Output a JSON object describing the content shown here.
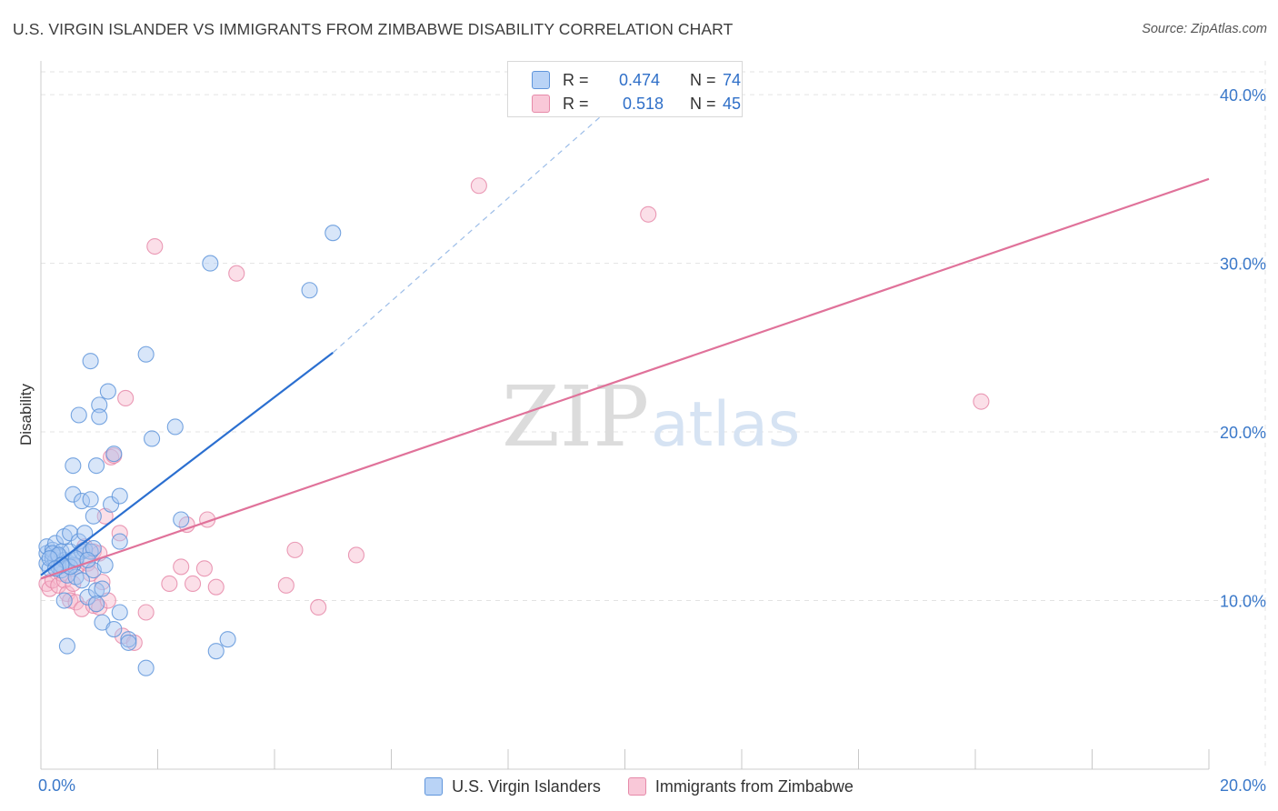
{
  "header": {
    "title": "U.S. VIRGIN ISLANDER VS IMMIGRANTS FROM ZIMBABWE DISABILITY CORRELATION CHART",
    "source": "Source: ZipAtlas.com"
  },
  "stats": {
    "blue": {
      "r_label": "R =",
      "r_value": "0.474",
      "n_label": "N =",
      "n_value": "74"
    },
    "pink": {
      "r_label": "R =",
      "r_value": "0.518",
      "n_label": "N =",
      "n_value": "45"
    }
  },
  "watermark": {
    "zip": "ZIP",
    "atlas": "atlas"
  },
  "colors": {
    "blue": "#5f95db",
    "blue_line": "#2b6fd0",
    "pink": "#e68aa9",
    "pink_line": "#e0729a",
    "tick": "#3a78c9"
  },
  "chart_data": {
    "type": "scatter",
    "title": "U.S. VIRGIN ISLANDER VS IMMIGRANTS FROM ZIMBABWE DISABILITY CORRELATION CHART",
    "xlabel": "",
    "ylabel": "Disability",
    "xlim": [
      0,
      20
    ],
    "ylim": [
      0,
      42
    ],
    "x_ticks": [
      0,
      2,
      4,
      6,
      8,
      10,
      12,
      14,
      16,
      18,
      20
    ],
    "x_tick_labels": {
      "0": "0.0%",
      "20": "20.0%"
    },
    "y_ticks": [
      10,
      20,
      30,
      40
    ],
    "y_tick_labels": [
      "10.0%",
      "20.0%",
      "30.0%",
      "40.0%"
    ],
    "grid": true,
    "legend": [
      "U.S. Virgin Islanders",
      "Immigrants from Zimbabwe"
    ],
    "series": [
      {
        "name": "U.S. Virgin Islanders",
        "color": "#5f95db",
        "points": [
          [
            0.1,
            12.2
          ],
          [
            0.1,
            12.8
          ],
          [
            0.1,
            13.2
          ],
          [
            0.15,
            11.9
          ],
          [
            0.2,
            12.5
          ],
          [
            0.2,
            13.0
          ],
          [
            0.25,
            12.4
          ],
          [
            0.25,
            13.4
          ],
          [
            0.3,
            12.0
          ],
          [
            0.3,
            12.6
          ],
          [
            0.35,
            12.9
          ],
          [
            0.35,
            11.8
          ],
          [
            0.4,
            12.4
          ],
          [
            0.4,
            13.8
          ],
          [
            0.45,
            11.5
          ],
          [
            0.45,
            12.3
          ],
          [
            0.5,
            14.0
          ],
          [
            0.5,
            12.9
          ],
          [
            0.55,
            18.0
          ],
          [
            0.55,
            16.3
          ],
          [
            0.55,
            12.1
          ],
          [
            0.6,
            12.4
          ],
          [
            0.6,
            11.4
          ],
          [
            0.65,
            13.5
          ],
          [
            0.65,
            21.0
          ],
          [
            0.7,
            11.2
          ],
          [
            0.7,
            15.9
          ],
          [
            0.7,
            12.9
          ],
          [
            0.75,
            13.0
          ],
          [
            0.75,
            14.0
          ],
          [
            0.8,
            10.2
          ],
          [
            0.85,
            24.2
          ],
          [
            0.85,
            12.9
          ],
          [
            0.85,
            16.0
          ],
          [
            0.9,
            11.8
          ],
          [
            0.9,
            15.0
          ],
          [
            0.9,
            13.1
          ],
          [
            0.95,
            10.6
          ],
          [
            0.95,
            18.0
          ],
          [
            0.95,
            9.8
          ],
          [
            1.0,
            21.6
          ],
          [
            1.0,
            20.9
          ],
          [
            1.05,
            8.7
          ],
          [
            1.05,
            10.7
          ],
          [
            1.1,
            12.1
          ],
          [
            1.15,
            22.4
          ],
          [
            1.2,
            15.7
          ],
          [
            1.25,
            18.7
          ],
          [
            1.25,
            8.3
          ],
          [
            1.35,
            13.5
          ],
          [
            1.35,
            16.2
          ],
          [
            1.35,
            9.3
          ],
          [
            1.5,
            7.7
          ],
          [
            1.5,
            7.5
          ],
          [
            1.8,
            24.6
          ],
          [
            1.8,
            6.0
          ],
          [
            1.9,
            19.6
          ],
          [
            2.3,
            20.3
          ],
          [
            2.4,
            14.8
          ],
          [
            2.9,
            30.0
          ],
          [
            3.0,
            7.0
          ],
          [
            3.2,
            7.7
          ],
          [
            4.6,
            28.4
          ],
          [
            5.0,
            31.8
          ],
          [
            0.4,
            10.0
          ],
          [
            0.45,
            7.3
          ],
          [
            0.2,
            12.8
          ],
          [
            0.3,
            12.7
          ],
          [
            0.15,
            12.5
          ],
          [
            0.5,
            12.0
          ],
          [
            0.6,
            12.5
          ],
          [
            0.35,
            12.1
          ],
          [
            0.25,
            11.9
          ],
          [
            0.8,
            12.4
          ]
        ]
      },
      {
        "name": "Immigrants from Zimbabwe",
        "color": "#e68aa9",
        "points": [
          [
            0.1,
            11.0
          ],
          [
            0.15,
            10.7
          ],
          [
            0.2,
            11.2
          ],
          [
            0.3,
            10.9
          ],
          [
            0.35,
            11.6
          ],
          [
            0.4,
            11.2
          ],
          [
            0.45,
            10.4
          ],
          [
            0.5,
            10.0
          ],
          [
            0.55,
            11.0
          ],
          [
            0.6,
            9.9
          ],
          [
            0.6,
            12.0
          ],
          [
            0.7,
            9.5
          ],
          [
            0.75,
            13.2
          ],
          [
            0.8,
            12.2
          ],
          [
            0.85,
            11.6
          ],
          [
            0.9,
            9.7
          ],
          [
            0.9,
            12.9
          ],
          [
            1.0,
            9.6
          ],
          [
            1.0,
            12.8
          ],
          [
            1.05,
            11.1
          ],
          [
            1.1,
            15.0
          ],
          [
            1.15,
            10.0
          ],
          [
            1.2,
            18.5
          ],
          [
            1.35,
            14.0
          ],
          [
            1.4,
            7.9
          ],
          [
            1.45,
            22.0
          ],
          [
            1.6,
            7.5
          ],
          [
            1.8,
            9.3
          ],
          [
            1.95,
            31.0
          ],
          [
            2.2,
            11.0
          ],
          [
            2.4,
            12.0
          ],
          [
            2.5,
            14.5
          ],
          [
            2.6,
            11.0
          ],
          [
            2.8,
            11.9
          ],
          [
            3.0,
            10.8
          ],
          [
            2.85,
            14.8
          ],
          [
            3.35,
            29.4
          ],
          [
            4.2,
            10.9
          ],
          [
            4.35,
            13.0
          ],
          [
            4.75,
            9.6
          ],
          [
            5.4,
            12.7
          ],
          [
            7.5,
            34.6
          ],
          [
            10.4,
            32.9
          ],
          [
            16.1,
            21.8
          ],
          [
            1.25,
            18.6
          ]
        ]
      }
    ],
    "trend_lines": [
      {
        "series": "U.S. Virgin Islanders",
        "x_start": 0,
        "y_start": 11.5,
        "x_end": 5.0,
        "y_end": 24.7,
        "dashed_x_end": 10.5,
        "dashed_y_end": 41.5
      },
      {
        "series": "Immigrants from Zimbabwe",
        "x_start": 0,
        "y_start": 11.3,
        "x_end": 20.0,
        "y_end": 35.0
      }
    ]
  }
}
